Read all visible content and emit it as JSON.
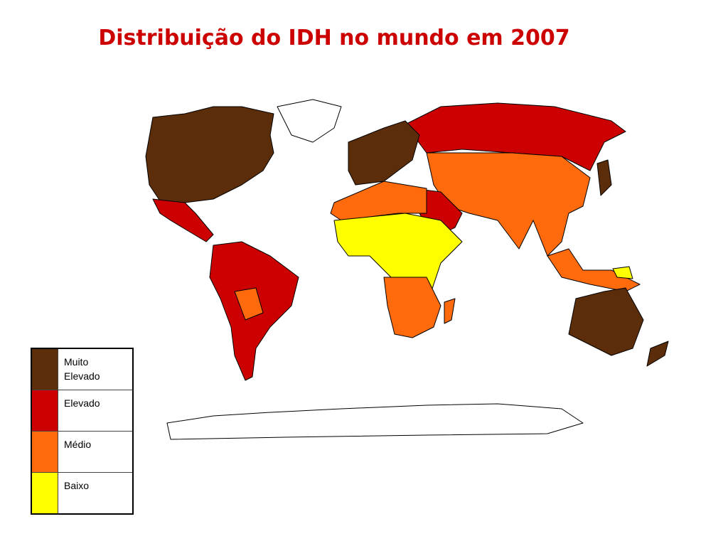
{
  "title": "Distribuição do IDH no mundo em 2007",
  "legend": {
    "items": [
      {
        "label": "Muito Elevado",
        "color": "#5c2d0a"
      },
      {
        "label": "Elevado",
        "color": "#cc0000"
      },
      {
        "label": "Médio",
        "color": "#ff6a0d"
      },
      {
        "label": "Baixo",
        "color": "#ffff00"
      }
    ]
  }
}
